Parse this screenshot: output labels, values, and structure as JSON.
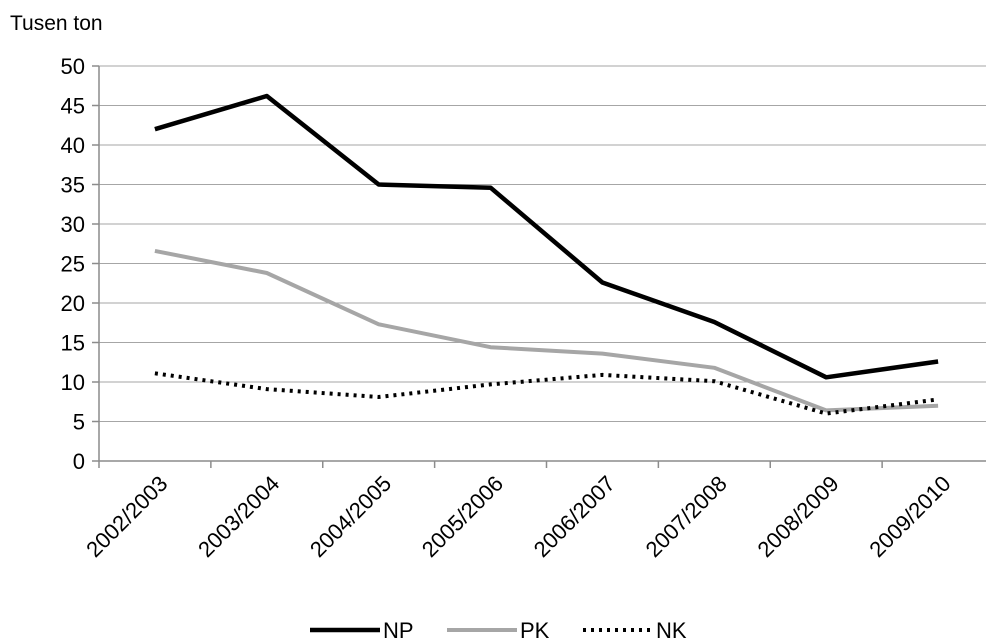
{
  "chart_data": {
    "type": "line",
    "title": "",
    "xlabel": "",
    "ylabel": "Tusen ton",
    "ylim": [
      0,
      50
    ],
    "y_ticks": [
      0,
      5,
      10,
      15,
      20,
      25,
      30,
      35,
      40,
      45,
      50
    ],
    "grid": true,
    "legend_position": "bottom",
    "categories": [
      "2002/2003",
      "2003/2004",
      "2004/2005",
      "2005/2006",
      "2006/2007",
      "2007/2008",
      "2008/2009",
      "2009/2010"
    ],
    "series": [
      {
        "name": "NP",
        "values": [
          42.0,
          46.2,
          35.0,
          34.6,
          22.6,
          17.6,
          10.6,
          12.6
        ],
        "color": "#000000",
        "style": "solid"
      },
      {
        "name": "PK",
        "values": [
          26.6,
          23.8,
          17.3,
          14.4,
          13.6,
          11.8,
          6.4,
          7.0
        ],
        "color": "#a6a6a6",
        "style": "solid"
      },
      {
        "name": "NK",
        "values": [
          11.1,
          9.1,
          8.1,
          9.7,
          10.9,
          10.1,
          6.0,
          7.8
        ],
        "color": "#000000",
        "style": "dotted"
      }
    ]
  }
}
